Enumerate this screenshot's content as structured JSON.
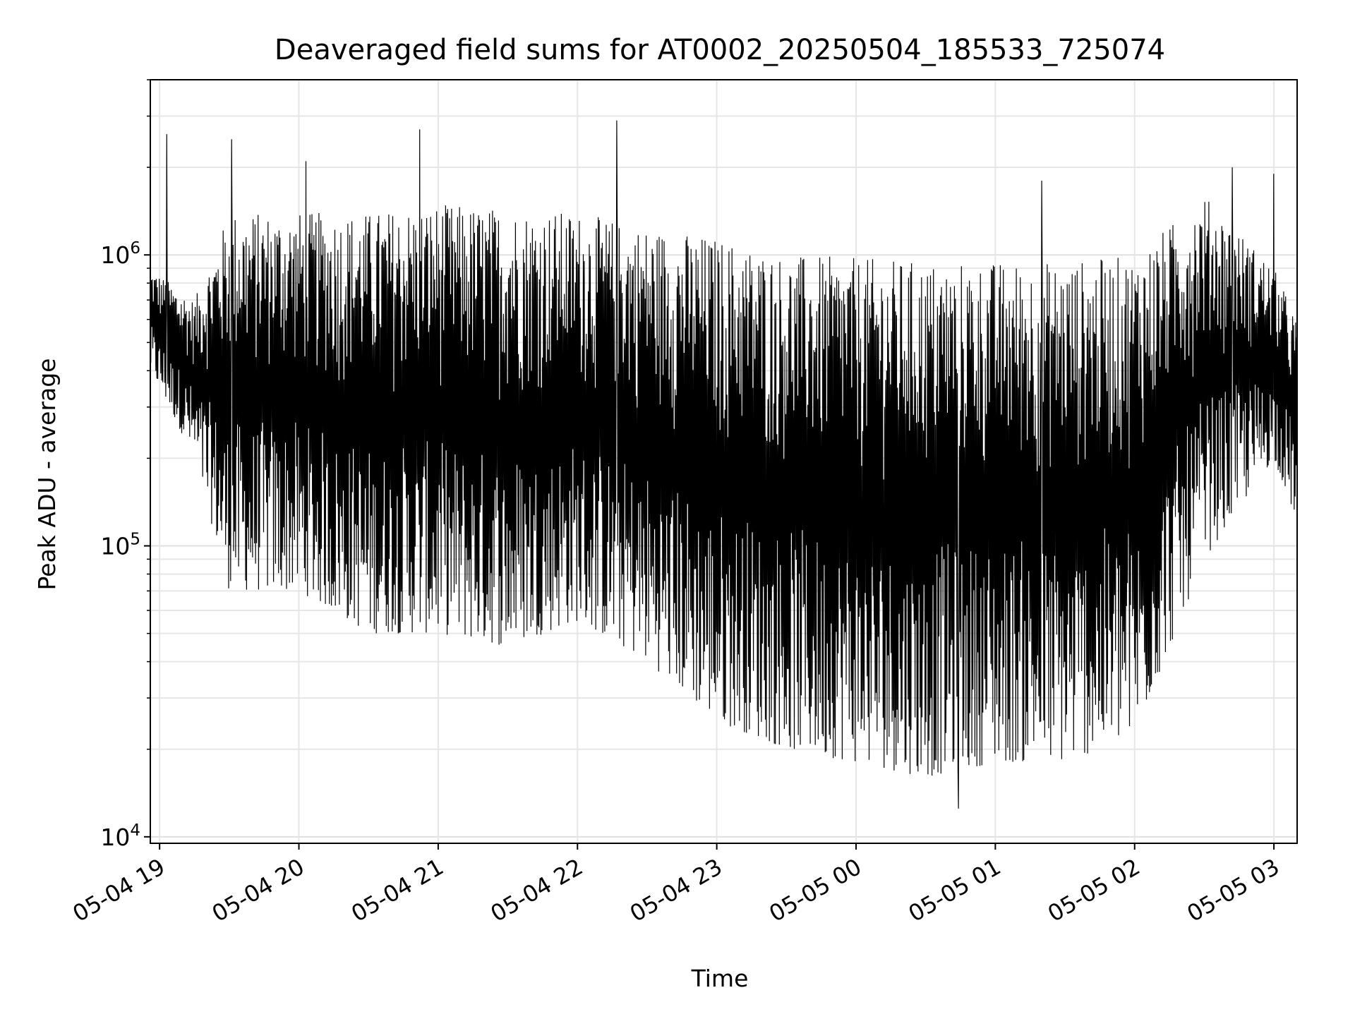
{
  "chart_data": {
    "type": "line",
    "title": "Deaveraged field sums for AT0002_20250504_185533_725074",
    "xlabel": "Time",
    "ylabel": "Peak ADU - average",
    "yscale": "log",
    "grid": true,
    "xlim": [
      "2025-05-04 18:56",
      "2025-05-05 03:10"
    ],
    "ylim": [
      9500,
      4000000
    ],
    "x_ticks": [
      "05-04 19",
      "05-04 20",
      "05-04 21",
      "05-04 22",
      "05-04 23",
      "05-05 00",
      "05-05 01",
      "05-05 02",
      "05-05 03"
    ],
    "y_ticks": [
      {
        "base": "10",
        "exp": "4"
      },
      {
        "base": "10",
        "exp": "5"
      },
      {
        "base": "10",
        "exp": "6"
      }
    ],
    "line_color": "#000000",
    "envelope": {
      "x": [
        "2025-05-04 18:56",
        "2025-05-04 19:15",
        "2025-05-04 19:30",
        "2025-05-04 20:00",
        "2025-05-04 20:30",
        "2025-05-04 21:00",
        "2025-05-04 21:30",
        "2025-05-04 22:00",
        "2025-05-04 22:30",
        "2025-05-04 23:00",
        "2025-05-04 23:30",
        "2025-05-05 00:00",
        "2025-05-05 00:30",
        "2025-05-05 01:00",
        "2025-05-05 01:30",
        "2025-05-05 02:00",
        "2025-05-05 02:30",
        "2025-05-05 03:00",
        "2025-05-05 03:10"
      ],
      "upper": [
        900000,
        700000,
        1400000,
        1400000,
        1400000,
        1500000,
        1450000,
        1400000,
        1250000,
        1150000,
        1000000,
        980000,
        950000,
        950000,
        950000,
        1000000,
        1600000,
        900000,
        600000
      ],
      "lower": [
        400000,
        200000,
        70000,
        70000,
        50000,
        50000,
        45000,
        55000,
        40000,
        25000,
        20000,
        18000,
        16000,
        18000,
        18000,
        22000,
        90000,
        200000,
        120000
      ],
      "spikes": [
        {
          "x": "2025-05-04 19:03",
          "y": 2600000
        },
        {
          "x": "2025-05-04 19:31",
          "y": 2500000
        },
        {
          "x": "2025-05-04 20:03",
          "y": 2100000
        },
        {
          "x": "2025-05-04 20:52",
          "y": 2700000
        },
        {
          "x": "2025-05-04 22:17",
          "y": 2900000
        },
        {
          "x": "2025-05-05 01:20",
          "y": 1800000
        },
        {
          "x": "2025-05-05 02:42",
          "y": 2000000
        },
        {
          "x": "2025-05-05 03:00",
          "y": 1900000
        },
        {
          "x": "2025-05-05 00:44",
          "y": 12500
        }
      ]
    }
  }
}
